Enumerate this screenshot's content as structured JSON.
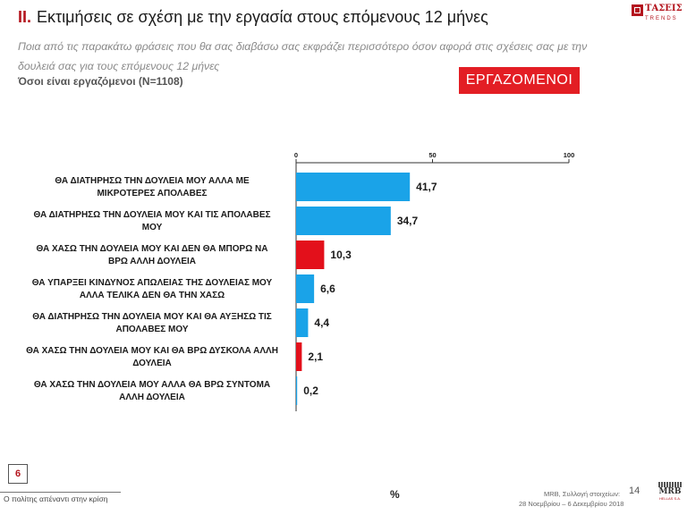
{
  "header": {
    "section_num": "II.",
    "title": "Εκτιμήσεις σε σχέση με την εργασία στους επόμενους 12 μήνες",
    "subtitle": "Ποια από τις παρακάτω φράσεις που θα σας διαβάσω σας εκφράζει περισσότερο όσον αφορά στις σχέσεις σας με την δουλειά σας για τους επόμενους 12 μήνες",
    "base": "Όσοι είναι εργαζόμενοι (N=1108)",
    "badge": "ΕΡΓΑΖΟΜΕΝΟΙ",
    "logo_text": "ΤΑΣΕΙΣ",
    "logo_sub": "TRENDS"
  },
  "chart_data": {
    "type": "bar",
    "orientation": "horizontal",
    "title": "Εκτιμήσεις σε σχέση με την εργασία στους επόμενους 12 μήνες",
    "xlabel": "%",
    "xlim": [
      0,
      100
    ],
    "ticks": [
      0,
      50,
      100
    ],
    "categories": [
      [
        "ΘΑ ΔΙΑΤΗΡΗΣΩ ΤΗΝ ΔΟΥΛΕΙΑ ΜΟΥ ΑΛΛΑ ΜΕ",
        "ΜΙΚΡΟΤΕΡΕΣ ΑΠΟΛΑΒΕΣ"
      ],
      [
        "ΘΑ ΔΙΑΤΗΡΗΣΩ ΤΗΝ ΔΟΥΛΕΙΑ ΜΟΥ ΚΑΙ ΤΙΣ ΑΠΟΛΑΒΕΣ",
        "ΜΟΥ"
      ],
      [
        "ΘΑ ΧΑΣΩ ΤΗΝ ΔΟΥΛΕΙΑ ΜΟΥ ΚΑΙ ΔΕΝ ΘΑ ΜΠΟΡΩ ΝΑ",
        "ΒΡΩ ΑΛΛΗ ΔΟΥΛΕΙΑ"
      ],
      [
        "ΘΑ ΥΠΑΡΞΕΙ ΚΙΝΔΥΝΟΣ ΑΠΩΛΕΙΑΣ ΤΗΣ ΔΟΥΛΕΙΑΣ ΜΟΥ",
        "ΑΛΛΑ ΤΕΛΙΚΑ ΔΕΝ ΘΑ ΤΗΝ ΧΑΣΩ"
      ],
      [
        "ΘΑ ΔΙΑΤΗΡΗΣΩ ΤΗΝ ΔΟΥΛΕΙΑ ΜΟΥ ΚΑΙ ΘΑ ΑΥΞΗΣΩ ΤΙΣ",
        "ΑΠΟΛΑΒΕΣ ΜΟΥ"
      ],
      [
        "ΘΑ ΧΑΣΩ ΤΗΝ ΔΟΥΛΕΙΑ ΜΟΥ ΚΑΙ ΘΑ ΒΡΩ ΔΥΣΚΟΛΑ ΑΛΛΗ",
        "ΔΟΥΛΕΙΑ"
      ],
      [
        "ΘΑ ΧΑΣΩ ΤΗΝ ΔΟΥΛΕΙΑ ΜΟΥ ΑΛΛΑ ΘΑ ΒΡΩ ΣΥΝΤΟΜΑ",
        "ΑΛΛΗ ΔΟΥΛΕΙΑ"
      ]
    ],
    "values": [
      41.7,
      34.7,
      10.3,
      6.6,
      4.4,
      2.1,
      0.2
    ],
    "value_labels": [
      "41,7",
      "34,7",
      "10,3",
      "6,6",
      "4,4",
      "2,1",
      "0,2"
    ],
    "bar_colors": [
      "#1aa3e8",
      "#1aa3e8",
      "#e3101b",
      "#1aa3e8",
      "#1aa3e8",
      "#e3101b",
      "#1aa3e8"
    ]
  },
  "footer": {
    "page_box": "6",
    "left": "Ο πολίτης απέναντι στην κρίση",
    "pct": "%",
    "source": "MRB, Συλλογή στοιχείων:",
    "page_num": "14",
    "dates": "28 Νοεμβρίου – 6 Δεκεμβρίου 2018",
    "mrb_logo": "MRB",
    "mrb_sub": "HELLAS S.A."
  }
}
